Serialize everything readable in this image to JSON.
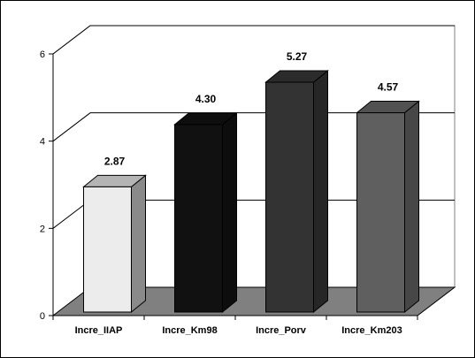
{
  "chart_data": {
    "type": "bar",
    "title": "",
    "xlabel": "",
    "ylabel": "",
    "categories": [
      "Incre_IIAP",
      "Incre_Km98",
      "Incre_Porv",
      "Incre_Km203"
    ],
    "values": [
      2.87,
      4.3,
      5.27,
      4.57
    ],
    "value_labels": [
      "2.87",
      "4.30",
      "5.27",
      "4.57"
    ],
    "y_ticks": [
      "0",
      "2",
      "4",
      "6"
    ],
    "ylim": [
      0,
      6
    ],
    "grid": true,
    "legend": "none",
    "three_d": true,
    "colors": {
      "bars": [
        "#ececec",
        "#111111",
        "#333333",
        "#5f5f5f"
      ],
      "floor": "#808080",
      "frame": "#000000"
    }
  }
}
